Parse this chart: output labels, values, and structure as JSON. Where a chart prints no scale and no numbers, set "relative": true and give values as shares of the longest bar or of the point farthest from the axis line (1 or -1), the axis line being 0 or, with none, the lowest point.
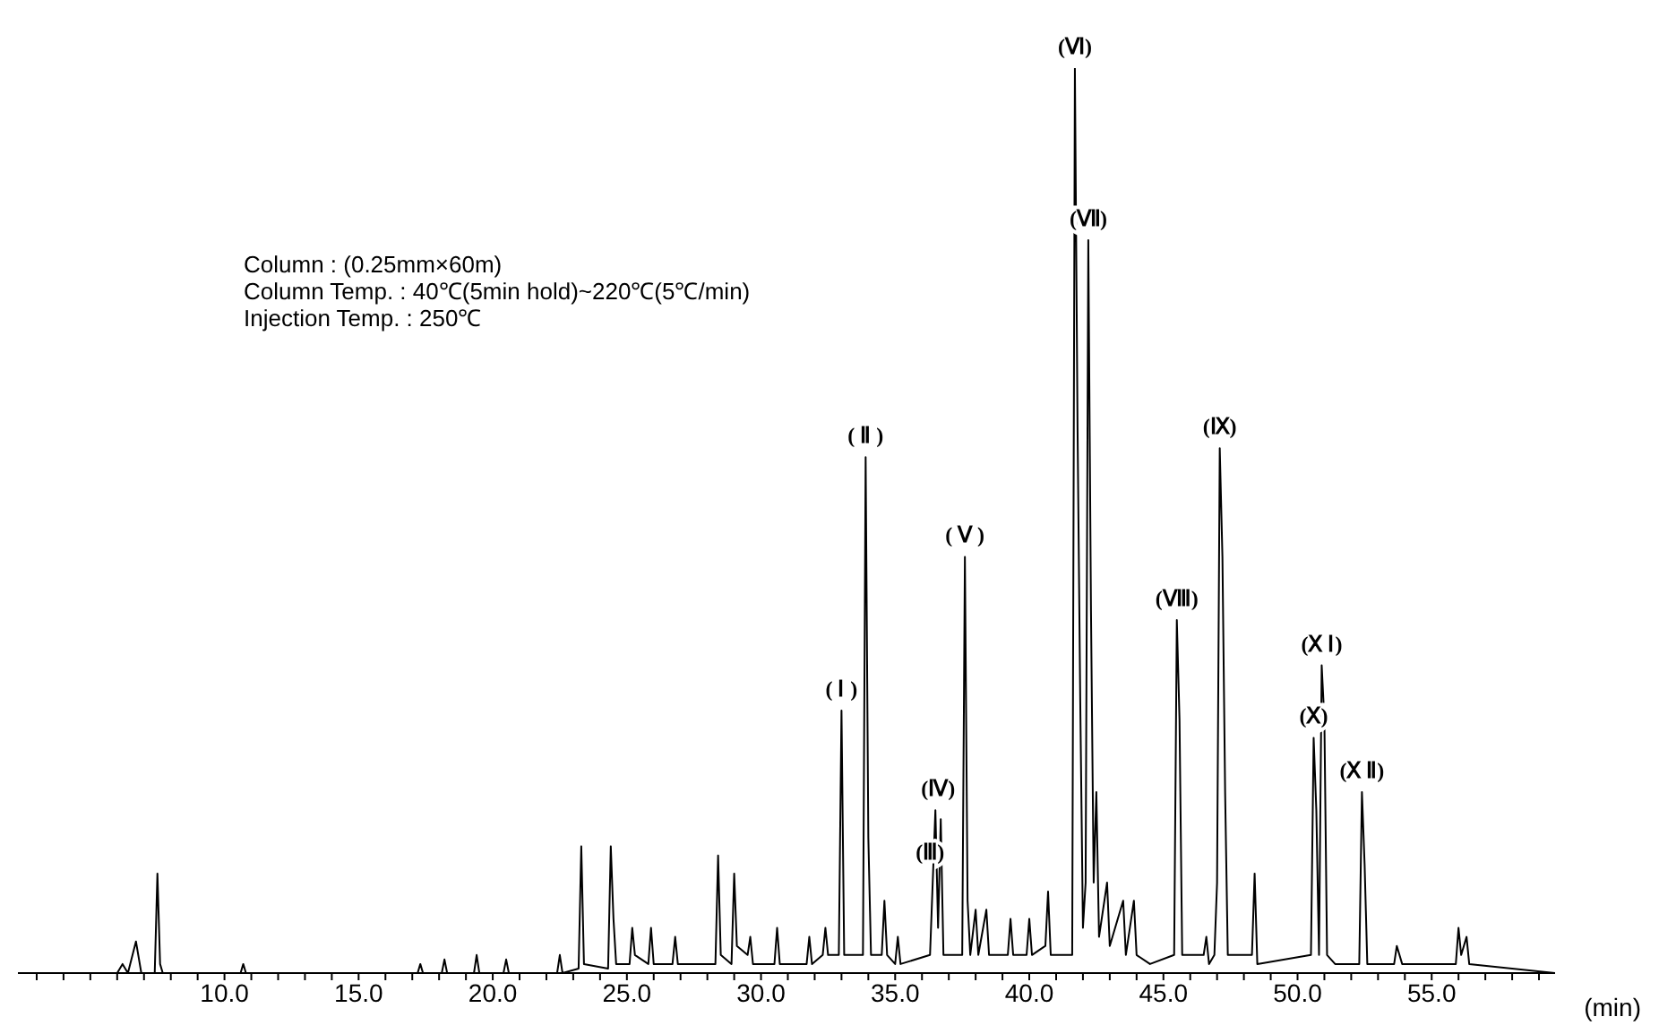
{
  "chart_data": {
    "type": "line",
    "relative": true,
    "xlabel": "(min)",
    "color": "#000000",
    "annotations": [
      "Column : (0.25mm×60m)",
      "Column Temp. : 40℃(5min hold)~220℃(5℃/min)",
      "Injection Temp. : 250℃",
      {
        "text": "( Ⅰ )",
        "x": 33.0,
        "y": 0.29
      },
      {
        "text": "( Ⅱ )",
        "x": 33.9,
        "y": 0.57
      },
      {
        "text": "(Ⅲ)",
        "x": 36.3,
        "y": 0.11
      },
      {
        "text": "(Ⅳ)",
        "x": 36.6,
        "y": 0.18
      },
      {
        "text": "( Ⅴ )",
        "x": 37.6,
        "y": 0.46
      },
      {
        "text": "(Ⅵ)",
        "x": 41.7,
        "y": 1.0
      },
      {
        "text": "(Ⅶ)",
        "x": 42.2,
        "y": 0.81
      },
      {
        "text": "(Ⅷ)",
        "x": 45.5,
        "y": 0.39
      },
      {
        "text": "(Ⅸ)",
        "x": 47.1,
        "y": 0.58
      },
      {
        "text": "(Ⅹ)",
        "x": 50.6,
        "y": 0.26
      },
      {
        "text": "(Ⅹ Ⅰ)",
        "x": 50.9,
        "y": 0.34
      },
      {
        "text": "(Ⅹ Ⅱ)",
        "x": 52.4,
        "y": 0.2
      }
    ],
    "xlim": [
      2.3,
      59.6
    ],
    "xticks": [
      {
        "value": 3,
        "label": null
      },
      {
        "value": 4,
        "label": null
      },
      {
        "value": 5,
        "label": null
      },
      {
        "value": 6,
        "label": null
      },
      {
        "value": 7,
        "label": null
      },
      {
        "value": 8,
        "label": null
      },
      {
        "value": 9,
        "label": null
      },
      {
        "value": 10,
        "label": "10.0"
      },
      {
        "value": 11,
        "label": null
      },
      {
        "value": 12,
        "label": null
      },
      {
        "value": 13,
        "label": null
      },
      {
        "value": 14,
        "label": null
      },
      {
        "value": 15,
        "label": "15.0"
      },
      {
        "value": 16,
        "label": null
      },
      {
        "value": 17,
        "label": null
      },
      {
        "value": 18,
        "label": null
      },
      {
        "value": 19,
        "label": null
      },
      {
        "value": 20,
        "label": "20.0"
      },
      {
        "value": 21,
        "label": null
      },
      {
        "value": 22,
        "label": null
      },
      {
        "value": 23,
        "label": null
      },
      {
        "value": 24,
        "label": null
      },
      {
        "value": 25,
        "label": "25.0"
      },
      {
        "value": 26,
        "label": null
      },
      {
        "value": 27,
        "label": null
      },
      {
        "value": 28,
        "label": null
      },
      {
        "value": 29,
        "label": null
      },
      {
        "value": 30,
        "label": "30.0"
      },
      {
        "value": 31,
        "label": null
      },
      {
        "value": 32,
        "label": null
      },
      {
        "value": 33,
        "label": null
      },
      {
        "value": 34,
        "label": null
      },
      {
        "value": 35,
        "label": "35.0"
      },
      {
        "value": 36,
        "label": null
      },
      {
        "value": 37,
        "label": null
      },
      {
        "value": 38,
        "label": null
      },
      {
        "value": 39,
        "label": null
      },
      {
        "value": 40,
        "label": "40.0"
      },
      {
        "value": 41,
        "label": null
      },
      {
        "value": 42,
        "label": null
      },
      {
        "value": 43,
        "label": null
      },
      {
        "value": 44,
        "label": null
      },
      {
        "value": 45,
        "label": "45.0"
      },
      {
        "value": 46,
        "label": null
      },
      {
        "value": 47,
        "label": null
      },
      {
        "value": 48,
        "label": null
      },
      {
        "value": 49,
        "label": null
      },
      {
        "value": 50,
        "label": "50.0"
      },
      {
        "value": 51,
        "label": null
      },
      {
        "value": 52,
        "label": null
      },
      {
        "value": 53,
        "label": null
      },
      {
        "value": 54,
        "label": null
      },
      {
        "value": 55,
        "label": "55.0"
      },
      {
        "value": 56,
        "label": null
      },
      {
        "value": 57,
        "label": null
      },
      {
        "value": 58,
        "label": null
      },
      {
        "value": 59,
        "label": null
      }
    ],
    "x": [
      2.3,
      6.0,
      6.2,
      6.4,
      6.7,
      6.9,
      7.4,
      7.5,
      7.6,
      7.7,
      10.6,
      10.7,
      10.8,
      17.2,
      17.3,
      17.4,
      18.1,
      18.2,
      18.3,
      19.3,
      19.4,
      19.5,
      20.4,
      20.5,
      20.6,
      22.4,
      22.5,
      22.6,
      23.2,
      23.3,
      23.4,
      24.3,
      24.4,
      24.5,
      24.6,
      25.1,
      25.2,
      25.3,
      25.8,
      25.9,
      26.0,
      26.7,
      26.8,
      26.9,
      28.3,
      28.4,
      28.5,
      28.9,
      29.0,
      29.1,
      29.5,
      29.6,
      29.7,
      30.5,
      30.6,
      30.7,
      31.7,
      31.8,
      31.9,
      32.3,
      32.4,
      32.5,
      32.9,
      33.0,
      33.1,
      33.8,
      33.9,
      34.0,
      34.1,
      34.5,
      34.6,
      34.7,
      35.0,
      35.1,
      35.2,
      36.3,
      36.5,
      36.6,
      36.7,
      36.8,
      37.5,
      37.6,
      37.7,
      37.8,
      38.0,
      38.1,
      38.4,
      38.5,
      39.2,
      39.3,
      39.4,
      39.9,
      40.0,
      40.1,
      40.6,
      40.7,
      40.8,
      41.6,
      41.7,
      41.8,
      41.9,
      42.0,
      42.1,
      42.2,
      42.3,
      42.4,
      42.5,
      42.6,
      42.9,
      43.0,
      43.5,
      43.6,
      43.9,
      44.0,
      44.5,
      45.4,
      45.5,
      45.6,
      45.7,
      46.5,
      46.6,
      46.7,
      46.9,
      47.0,
      47.1,
      47.2,
      47.3,
      47.4,
      48.3,
      48.4,
      48.5,
      50.5,
      50.6,
      50.7,
      50.8,
      50.9,
      51.0,
      51.1,
      51.4,
      52.3,
      52.4,
      52.5,
      52.6,
      53.6,
      53.7,
      53.9,
      55.9,
      56.0,
      56.1,
      56.3,
      56.4,
      59.6
    ],
    "values": [
      0,
      0,
      0.01,
      0,
      0.035,
      0,
      0,
      0.11,
      0.01,
      0,
      0,
      0.01,
      0,
      0,
      0.01,
      0,
      0,
      0.015,
      0,
      0,
      0.02,
      0,
      0,
      0.015,
      0,
      0,
      0.02,
      0,
      0.005,
      0.14,
      0.01,
      0.005,
      0.14,
      0.06,
      0.01,
      0.01,
      0.05,
      0.02,
      0.01,
      0.05,
      0.01,
      0.01,
      0.04,
      0.01,
      0.01,
      0.13,
      0.02,
      0.01,
      0.11,
      0.03,
      0.02,
      0.04,
      0.01,
      0.01,
      0.05,
      0.01,
      0.01,
      0.04,
      0.01,
      0.02,
      0.05,
      0.02,
      0.02,
      0.29,
      0.02,
      0.02,
      0.57,
      0.15,
      0.02,
      0.02,
      0.08,
      0.02,
      0.01,
      0.04,
      0.01,
      0.02,
      0.18,
      0.05,
      0.17,
      0.02,
      0.02,
      0.46,
      0.08,
      0.02,
      0.07,
      0.02,
      0.07,
      0.02,
      0.02,
      0.06,
      0.02,
      0.02,
      0.06,
      0.02,
      0.03,
      0.09,
      0.02,
      0.02,
      1.0,
      0.6,
      0.3,
      0.05,
      0.1,
      0.81,
      0.4,
      0.1,
      0.2,
      0.04,
      0.1,
      0.03,
      0.08,
      0.02,
      0.08,
      0.02,
      0.01,
      0.02,
      0.39,
      0.28,
      0.02,
      0.02,
      0.04,
      0.01,
      0.02,
      0.1,
      0.58,
      0.46,
      0.2,
      0.02,
      0.02,
      0.11,
      0.01,
      0.02,
      0.26,
      0.18,
      0.02,
      0.34,
      0.28,
      0.02,
      0.01,
      0.01,
      0.2,
      0.12,
      0.01,
      0.01,
      0.03,
      0.01,
      0.01,
      0.05,
      0.02,
      0.04,
      0.01,
      0
    ]
  }
}
